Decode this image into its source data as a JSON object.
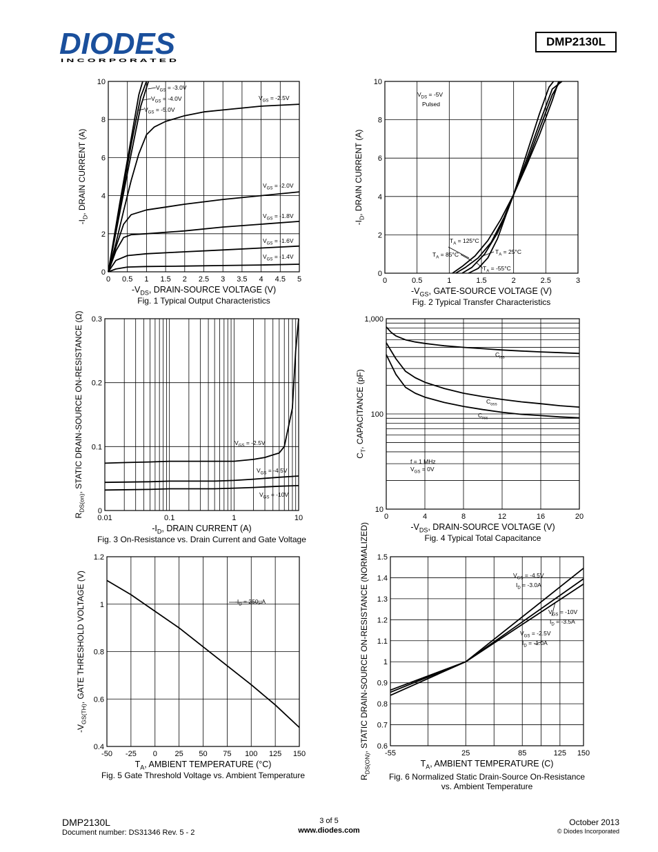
{
  "header": {
    "logo_word": "DIODES",
    "logo_sub": "I N C O R P O R A T E D",
    "part_number": "DMP2130L"
  },
  "footer": {
    "part": "DMP2130L",
    "doc": "Document number: DS31346 Rev. 5 - 2",
    "page": "3 of 5",
    "url": "www.diodes.com",
    "date": "October 2013",
    "copyright": "© Diodes Incorporated"
  },
  "chart_data": [
    {
      "id": "fig1",
      "type": "line",
      "title": "Fig. 1  Typical Output Characteristics",
      "xlabel": "-V_DS, DRAIN-SOURCE VOLTAGE (V)",
      "ylabel": "-I_D, DRAIN CURRENT (A)",
      "xlim": [
        0,
        5
      ],
      "ylim": [
        0,
        10
      ],
      "xticks": [
        "0",
        "0.5",
        "1",
        "1.5",
        "2",
        "2.5",
        "3",
        "3.5",
        "4",
        "4.5",
        "5"
      ],
      "yticks": [
        "0",
        "2",
        "4",
        "6",
        "8",
        "10"
      ],
      "series": [
        {
          "name": "V_GS = -3.0V",
          "x": [
            0,
            0.3,
            0.6,
            0.85,
            1.05
          ],
          "y": [
            0,
            3.1,
            6.2,
            8.7,
            10
          ]
        },
        {
          "name": "V_GS = -4.0V",
          "x": [
            0,
            0.3,
            0.6,
            0.85,
            1.0
          ],
          "y": [
            0,
            3.3,
            6.7,
            9.2,
            10
          ]
        },
        {
          "name": "V_GS = -5.0V",
          "x": [
            0,
            0.3,
            0.6,
            0.8,
            0.9
          ],
          "y": [
            0,
            3.6,
            7.0,
            9.3,
            10
          ]
        },
        {
          "name": "V_GS = -2.5V",
          "x": [
            0,
            0.2,
            0.4,
            0.6,
            0.8,
            1.0,
            1.2,
            1.5,
            2,
            2.5,
            3,
            3.5,
            4,
            4.5,
            5
          ],
          "y": [
            0,
            1.5,
            3.2,
            4.8,
            6.2,
            7.2,
            7.6,
            7.9,
            8.2,
            8.4,
            8.5,
            8.6,
            8.7,
            8.75,
            8.8
          ]
        },
        {
          "name": "V_GS = -2.0V",
          "x": [
            0,
            0.2,
            0.4,
            0.6,
            1,
            1.5,
            2,
            3,
            4,
            5
          ],
          "y": [
            0,
            1.3,
            2.5,
            3.0,
            3.25,
            3.4,
            3.55,
            3.8,
            4.0,
            4.2
          ]
        },
        {
          "name": "V_GS = -1.8V",
          "x": [
            0,
            0.2,
            0.4,
            0.6,
            1,
            2,
            3,
            4,
            5
          ],
          "y": [
            0,
            1.1,
            1.8,
            1.95,
            2.0,
            2.15,
            2.35,
            2.5,
            2.65
          ]
        },
        {
          "name": "V_GS = -1.6V",
          "x": [
            0,
            0.2,
            0.5,
            1,
            2,
            3,
            4,
            5
          ],
          "y": [
            0,
            0.6,
            0.85,
            0.95,
            1.05,
            1.15,
            1.25,
            1.35
          ]
        },
        {
          "name": "V_GS = -1.4V",
          "x": [
            0,
            0.2,
            0.5,
            1,
            2,
            3,
            4,
            5
          ],
          "y": [
            0,
            0.15,
            0.25,
            0.28,
            0.3,
            0.33,
            0.36,
            0.4
          ]
        }
      ]
    },
    {
      "id": "fig2",
      "type": "line",
      "title": "Fig. 2  Typical Transfer Characteristics",
      "xlabel": "-V_GS, GATE-SOURCE VOLTAGE (V)",
      "ylabel": "-I_D, DRAIN CURRENT (A)",
      "xlim": [
        0,
        3
      ],
      "ylim": [
        0,
        10
      ],
      "xticks": [
        "0",
        "0.5",
        "1",
        "1.5",
        "2",
        "2.5",
        "3"
      ],
      "yticks": [
        "0",
        "2",
        "4",
        "6",
        "8",
        "10"
      ],
      "annotations": [
        "V_DS = -5V",
        "Pulsed"
      ],
      "series": [
        {
          "name": "T_A = 125°C",
          "x": [
            1.05,
            1.2,
            1.4,
            1.6,
            1.8,
            2.0,
            2.2,
            2.4,
            2.6,
            2.7
          ],
          "y": [
            0,
            0.35,
            0.9,
            1.7,
            2.8,
            4.1,
            5.6,
            7.2,
            9.0,
            10
          ]
        },
        {
          "name": "T_A = 85°C",
          "x": [
            1.1,
            1.25,
            1.45,
            1.65,
            1.85,
            2.0,
            2.2,
            2.4,
            2.6,
            2.72
          ],
          "y": [
            0,
            0.3,
            0.8,
            1.6,
            2.9,
            4.1,
            5.7,
            7.5,
            9.3,
            10
          ]
        },
        {
          "name": "T_A = 25°C",
          "x": [
            1.2,
            1.35,
            1.55,
            1.75,
            1.9,
            2.0,
            2.2,
            2.4,
            2.6,
            2.75
          ],
          "y": [
            0,
            0.3,
            1.0,
            2.1,
            3.2,
            4.1,
            5.9,
            7.8,
            9.6,
            10
          ]
        },
        {
          "name": "T_A = -55°C",
          "x": [
            1.3,
            1.45,
            1.6,
            1.75,
            1.9,
            2.0,
            2.2,
            2.4,
            2.55,
            2.62
          ],
          "y": [
            0,
            0.25,
            0.8,
            1.8,
            3.2,
            4.1,
            6.2,
            8.3,
            9.7,
            10
          ]
        }
      ]
    },
    {
      "id": "fig3",
      "type": "line",
      "title": "Fig. 3  On-Resistance vs. Drain Current and Gate Voltage",
      "xlabel": "-I_D, DRAIN CURRENT (A)",
      "ylabel": "R_DS(on), STATIC DRAIN-SOURCE ON-RESISTANCE (Ω)",
      "xscale": "log",
      "xlim": [
        0.01,
        10
      ],
      "ylim": [
        0,
        0.3
      ],
      "xticks": [
        "0.01",
        "0.1",
        "1",
        "10"
      ],
      "yticks": [
        "0",
        "0.1",
        "0.2",
        "0.3"
      ],
      "series": [
        {
          "name": "V_GS = -2.5V",
          "x": [
            0.01,
            0.02,
            0.05,
            0.1,
            0.2,
            0.5,
            1,
            2,
            3,
            4,
            5,
            6,
            8,
            9,
            10
          ],
          "y": [
            0.074,
            0.075,
            0.076,
            0.077,
            0.077,
            0.077,
            0.077,
            0.08,
            0.083,
            0.087,
            0.09,
            0.1,
            0.16,
            0.25,
            0.3
          ]
        },
        {
          "name": "V_GS = -4.5V",
          "x": [
            0.01,
            0.05,
            0.1,
            0.5,
            1,
            2,
            5,
            10
          ],
          "y": [
            0.044,
            0.045,
            0.046,
            0.046,
            0.047,
            0.049,
            0.052,
            0.054
          ]
        },
        {
          "name": "V_GS = -10V",
          "x": [
            0.01,
            0.05,
            0.1,
            0.5,
            1,
            2,
            5,
            10
          ],
          "y": [
            0.032,
            0.033,
            0.034,
            0.034,
            0.035,
            0.036,
            0.038,
            0.039
          ]
        }
      ]
    },
    {
      "id": "fig4",
      "type": "line",
      "title": "Fig. 4  Typical Total Capacitance",
      "xlabel": "-V_DS, DRAIN-SOURCE VOLTAGE (V)",
      "ylabel": "C_T, CAPACITANCE (pF)",
      "yscale": "log",
      "xlim": [
        0,
        20
      ],
      "ylim": [
        10,
        1000
      ],
      "xticks": [
        "0",
        "4",
        "8",
        "12",
        "16",
        "20"
      ],
      "yticks": [
        "10",
        "100",
        "1,000"
      ],
      "annotations": [
        "f = 1 MHz",
        "V_GS = 0V"
      ],
      "series": [
        {
          "name": "C_iss",
          "x": [
            0,
            0.5,
            1,
            2,
            3,
            4,
            6,
            8,
            10,
            12,
            14,
            16,
            18,
            20
          ],
          "y": [
            820,
            720,
            660,
            600,
            570,
            550,
            520,
            500,
            485,
            470,
            458,
            448,
            440,
            432
          ]
        },
        {
          "name": "C_oss",
          "x": [
            0,
            0.5,
            1,
            2,
            3,
            4,
            6,
            8,
            10,
            12,
            14,
            16,
            18,
            20
          ],
          "y": [
            560,
            460,
            380,
            280,
            240,
            215,
            185,
            165,
            152,
            142,
            134,
            128,
            122,
            118
          ]
        },
        {
          "name": "C_rss",
          "x": [
            0,
            0.5,
            1,
            2,
            3,
            4,
            6,
            8,
            10,
            12,
            14,
            16,
            18,
            20
          ],
          "y": [
            420,
            330,
            260,
            190,
            165,
            150,
            132,
            120,
            111,
            104,
            99,
            96,
            93,
            91
          ]
        }
      ]
    },
    {
      "id": "fig5",
      "type": "line",
      "title": "Fig. 5 Gate Threshold Voltage vs. Ambient Temperature",
      "xlabel": "T_A, AMBIENT TEMPERATURE (°C)",
      "ylabel": "-V_GS(TH), GATE THRESHOLD VOLTAGE (V)",
      "xlim": [
        -50,
        150
      ],
      "ylim": [
        0.4,
        1.2
      ],
      "xticks": [
        "-50",
        "-25",
        "0",
        "25",
        "50",
        "75",
        "100",
        "125",
        "150"
      ],
      "yticks": [
        "0.4",
        "0.6",
        "0.8",
        "1",
        "1.2"
      ],
      "series": [
        {
          "name": "-I_D = 250μA",
          "x": [
            -50,
            -25,
            0,
            25,
            50,
            75,
            100,
            125,
            150
          ],
          "y": [
            1.1,
            1.04,
            0.97,
            0.9,
            0.82,
            0.74,
            0.66,
            0.575,
            0.48
          ]
        }
      ]
    },
    {
      "id": "fig6",
      "type": "line",
      "title": "Fig. 6 Normalized Static Drain-Source On-Resistance vs. Ambient Temperature",
      "xlabel": "T_A, AMBIENT TEMPERATURE (C)",
      "ylabel": "R_DS(ON), STATIC DRAIN-SOURCE ON-RESISTANCE (NORMALIZED)",
      "xlim": [
        -55,
        150
      ],
      "ylim": [
        0.6,
        1.5
      ],
      "xticks": [
        "-55",
        "25",
        "85",
        "125",
        "150"
      ],
      "yticks": [
        "0.6",
        "0.7",
        "0.8",
        "0.9",
        "1",
        "1.1",
        "1.2",
        "1.3",
        "1.4",
        "1.5"
      ],
      "series": [
        {
          "name": "V_GS = -4.5V, I_D = -3.0A",
          "x": [
            -55,
            25,
            150
          ],
          "y": [
            0.84,
            1.0,
            1.445
          ]
        },
        {
          "name": "V_GS = -10V, I_D = -3.5A",
          "x": [
            -55,
            25,
            150
          ],
          "y": [
            0.855,
            1.0,
            1.395
          ]
        },
        {
          "name": "V_GS = -2.5V, I_D = -1.0A",
          "x": [
            -55,
            25,
            150
          ],
          "y": [
            0.865,
            1.0,
            1.37
          ]
        }
      ]
    }
  ]
}
